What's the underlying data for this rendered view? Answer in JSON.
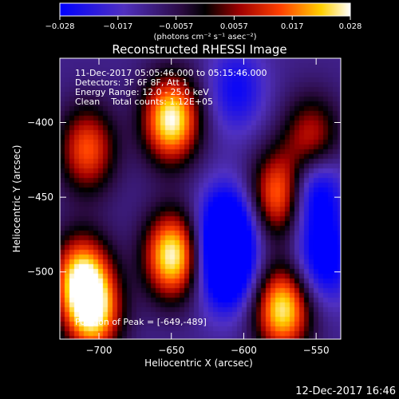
{
  "colorbar": {
    "ticks": [
      "-0.028",
      "-0.017",
      "-0.0057",
      "0.0057",
      "0.017",
      "0.028"
    ],
    "unit_label": "(photons cm⁻² s⁻¹ asec⁻²)"
  },
  "chart_data": {
    "type": "heatmap",
    "title": "Reconstructed RHESSI Image",
    "xlabel": "Heliocentric X (arcsec)",
    "ylabel": "Heliocentric Y (arcsec)",
    "xlim": [
      -727,
      -533
    ],
    "ylim": [
      -545,
      -357
    ],
    "x_ticks": [
      -700,
      -650,
      -600,
      -550
    ],
    "y_ticks": [
      -400,
      -450,
      -500
    ],
    "x_tick_labels": [
      "−700",
      "−650",
      "−600",
      "−550"
    ],
    "y_tick_labels": [
      "−400",
      "−450",
      "−500"
    ],
    "color_range": [
      -0.028,
      0.028
    ],
    "colormap": "blue-purple-black-red-yellow-white",
    "sources": [
      {
        "x": -650,
        "y": -398,
        "value": 0.028
      },
      {
        "x": -649,
        "y": -489,
        "value": 0.028
      },
      {
        "x": -573,
        "y": -525,
        "value": 0.026
      },
      {
        "x": -575,
        "y": -448,
        "value": 0.02
      },
      {
        "x": -708,
        "y": -418,
        "value": 0.015
      },
      {
        "x": -712,
        "y": -503,
        "value": 0.022
      },
      {
        "x": -704,
        "y": -528,
        "value": 0.022
      },
      {
        "x": -553,
        "y": -412,
        "value": 0.012
      },
      {
        "x": -612,
        "y": -470,
        "value": -0.024
      },
      {
        "x": -612,
        "y": -498,
        "value": -0.026
      },
      {
        "x": -552,
        "y": -445,
        "value": -0.022
      },
      {
        "x": -545,
        "y": -492,
        "value": -0.018
      },
      {
        "x": -605,
        "y": -378,
        "value": -0.012
      }
    ],
    "annotations": [
      "11-Dec-2017 05:05:46.000 to 05:15:46.000",
      "Detectors: 3F 6F 8F, Att 1",
      "Energy Range: 12.0 - 25.0 keV",
      "Clean    Total counts: 1.12E+05"
    ],
    "peak_label": "Position of Peak = [-649,-489]"
  },
  "footer": {
    "timestamp": "12-Dec-2017 16:46"
  }
}
